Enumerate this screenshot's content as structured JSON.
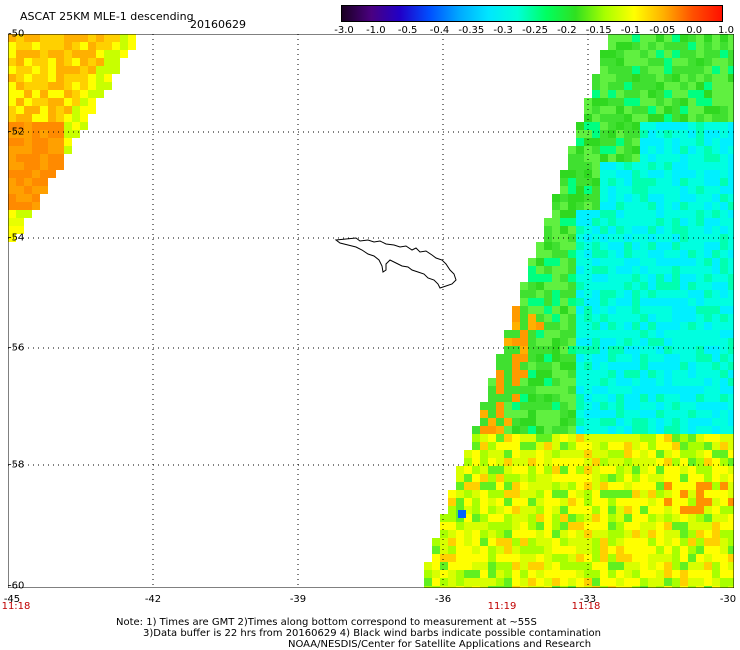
{
  "title": "ASCAT 25KM MLE-1 descending",
  "date": "20160629",
  "colorbar": {
    "labels": [
      "-3.0",
      "-1.0",
      "-0.5",
      "-0.4",
      "-0.35",
      "-0.3",
      "-0.25",
      "-0.2",
      "-0.15",
      "-0.1",
      "-0.05",
      "0.0",
      "1.0"
    ],
    "colors": [
      "#1a0022",
      "#4a0080",
      "#2000c8",
      "#0050ff",
      "#00a8ff",
      "#00e6ff",
      "#00ffd8",
      "#00ff60",
      "#30e020",
      "#a8ff00",
      "#ffff00",
      "#ffb000",
      "#ff5000",
      "#ff1000"
    ]
  },
  "map": {
    "lat_labels": [
      "-50",
      "-52",
      "-54",
      "-56",
      "-58",
      "-60"
    ],
    "lon_labels": [
      "-45",
      "-42",
      "-39",
      "-36",
      "-33",
      "-30"
    ],
    "lat_range": [
      -60,
      -50
    ],
    "lon_range": [
      -45,
      -30
    ],
    "time_labels": [
      {
        "text": "11:18",
        "lon": -45
      },
      {
        "text": "11:19",
        "lon": -34.4
      },
      {
        "text": "11:18",
        "lon": -33
      }
    ]
  },
  "notes": {
    "line1": "Note: 1) Times are GMT 2)Times along bottom correspond to measurement at ~55S",
    "line2": "3)Data buffer is 22 hrs from 20160629 4) Black wind barbs indicate possible contamination",
    "line3": "NOAA/NESDIS/Center for Satellite Applications and Research"
  }
}
